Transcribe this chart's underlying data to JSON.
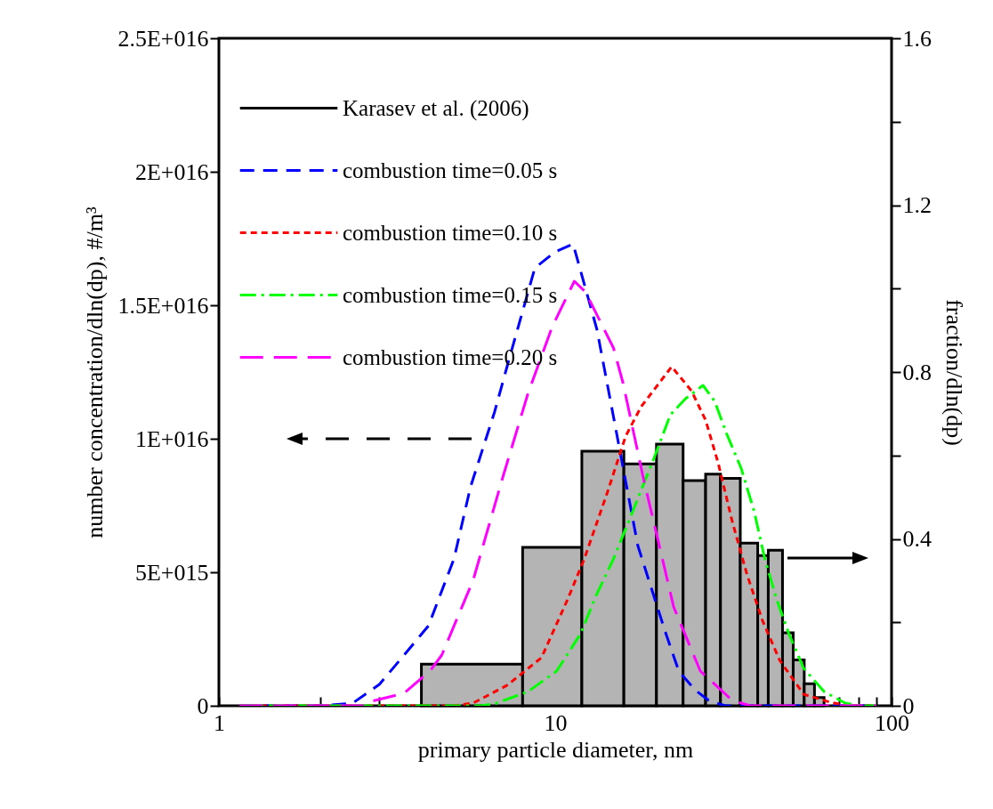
{
  "chart_data": {
    "type": "line",
    "xlabel": "primary particle diameter, nm",
    "ylabel": "number concentration/dln(dp), #/m³",
    "y2label": "fraction/dln(dp)",
    "log": "x",
    "grid": false,
    "legend": "top left",
    "xlim": [
      1,
      100
    ],
    "xticks": [
      1,
      {
        "value": 2,
        "label": null
      },
      {
        "value": 3,
        "label": null
      },
      {
        "value": 4,
        "label": null
      },
      {
        "value": 5,
        "label": null
      },
      {
        "value": 6,
        "label": null
      },
      {
        "value": 7,
        "label": null
      },
      {
        "value": 8,
        "label": null
      },
      {
        "value": 9,
        "label": null
      },
      10,
      {
        "value": 20,
        "label": null
      },
      {
        "value": 30,
        "label": null
      },
      {
        "value": 40,
        "label": null
      },
      {
        "value": 50,
        "label": null
      },
      {
        "value": 60,
        "label": null
      },
      {
        "value": 70,
        "label": null
      },
      {
        "value": 80,
        "label": null
      },
      {
        "value": 90,
        "label": null
      },
      100
    ],
    "ylim": [
      0,
      2.5e+16
    ],
    "yticks": [
      0,
      {
        "value": 5000000000000000.0,
        "label": "5E+015"
      },
      {
        "value": 1e+16,
        "label": "1E+016"
      },
      {
        "value": 1.5e+16,
        "label": "1.5E+016"
      },
      {
        "value": 2e+16,
        "label": "2E+016"
      },
      {
        "value": 2.5e+16,
        "label": "2.5E+016"
      }
    ],
    "y2lim": [
      0,
      1.6
    ],
    "y2ticks": [
      0,
      {
        "value": 0.2,
        "label": null
      },
      0.4,
      {
        "value": 0.6,
        "label": null
      },
      0.8,
      {
        "value": 1.0,
        "label": null
      },
      1.2,
      {
        "value": 1.4,
        "label": null
      },
      1.6
    ],
    "series": [
      {
        "name": "Karasev et al. (2006)",
        "type": "histogram",
        "axis": "y2",
        "color": "#000000",
        "line_style": "solid",
        "bins": [
          4,
          8,
          12,
          16,
          20,
          24,
          28,
          31,
          35.5,
          40,
          43,
          47.4,
          51,
          55,
          59,
          63
        ],
        "values": [
          0.1,
          0.38,
          0.61,
          0.58,
          0.627,
          0.54,
          0.555,
          0.545,
          0.39,
          0.36,
          0.373,
          0.175,
          0.11,
          0.053,
          0.02
        ]
      },
      {
        "name": "combustion time=0.05 s",
        "color": "#0000ff",
        "line_style": "dashed",
        "x": [
          1.15,
          2,
          2.5,
          3,
          3.5,
          4.2,
          5,
          5.6,
          6.6,
          7.3,
          8.7,
          10,
          11.3,
          13.3,
          15.6,
          17.6,
          21.2,
          23.3,
          26,
          28.6,
          32,
          90
        ],
        "values": [
          0,
          0,
          100000000000000.0,
          800000000000000.0,
          1800000000000000.0,
          3000000000000000.0,
          5500000000000000.0,
          8200000000000000.0,
          1.1e+16,
          1.3e+16,
          1.64e+16,
          1.7e+16,
          1.73e+16,
          1.41e+16,
          9500000000000000.0,
          6000000000000000.0,
          2800000000000000.0,
          1300000000000000.0,
          600000000000000.0,
          200000000000000.0,
          0,
          0
        ]
      },
      {
        "name": "combustion time=0.10 s",
        "color": "#ff0000",
        "line_style": "dotted",
        "x": [
          1.15,
          5,
          5.7,
          7.2,
          9.1,
          10.9,
          12.2,
          14.3,
          16.2,
          18,
          22.2,
          25.4,
          28,
          30.5,
          33.6,
          37.2,
          41.3,
          46.5,
          54.8,
          65.7,
          75,
          90
        ],
        "values": [
          0,
          0,
          100000000000000.0,
          770000000000000.0,
          1800000000000000.0,
          4000000000000000.0,
          5500000000000000.0,
          8000000000000000.0,
          1.01e+16,
          1.12e+16,
          1.27e+16,
          1.18e+16,
          1.07e+16,
          9100000000000000.0,
          6900000000000000.0,
          4900000000000000.0,
          3200000000000000.0,
          1700000000000000.0,
          430000000000000.0,
          130000000000000.0,
          0,
          0
        ]
      },
      {
        "name": "combustion time=0.15 s",
        "color": "#00ff00",
        "line_style": "dashdot",
        "x": [
          1.15,
          6,
          6.6,
          8.3,
          10.1,
          11.9,
          13.2,
          14.9,
          16.9,
          19.7,
          22,
          24.4,
          27.5,
          29.8,
          32.3,
          35.7,
          39,
          42,
          45.5,
          49.5,
          54.8,
          63,
          72.8,
          80,
          90
        ],
        "values": [
          0,
          0,
          70000000000000.0,
          530000000000000.0,
          1300000000000000.0,
          2700000000000000.0,
          4100000000000000.0,
          5500000000000000.0,
          7200000000000000.0,
          9300000000000000.0,
          1.09e+16,
          1.15e+16,
          1.2e+16,
          1.14e+16,
          1.02e+16,
          8900000000000000.0,
          7300000000000000.0,
          5500000000000000.0,
          4000000000000000.0,
          2700000000000000.0,
          1400000000000000.0,
          530000000000000.0,
          100000000000000.0,
          0,
          0
        ]
      },
      {
        "name": "combustion time=0.20 s",
        "color": "#ff00ff",
        "line_style": "longdash",
        "x": [
          1.15,
          2.7,
          2.85,
          3.55,
          4.24,
          4.6,
          5.7,
          7,
          8.3,
          9.8,
          11.4,
          12.3,
          14.9,
          15.9,
          18.3,
          20.3,
          22.5,
          27,
          33.6,
          38,
          90
        ],
        "values": [
          0,
          0,
          170000000000000.0,
          470000000000000.0,
          1300000000000000.0,
          1900000000000000.0,
          4700000000000000.0,
          8600000000000000.0,
          1.17e+16,
          1.42e+16,
          1.59e+16,
          1.55e+16,
          1.34e+16,
          1.21e+16,
          8500000000000000.0,
          6100000000000000.0,
          3700000000000000.0,
          1300000000000000.0,
          200000000000000.0,
          0,
          0
        ]
      }
    ]
  }
}
